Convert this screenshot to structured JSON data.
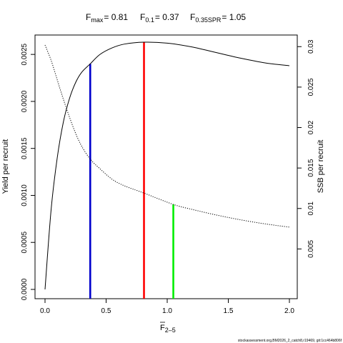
{
  "chart_data": {
    "type": "line",
    "title": {
      "fmax": {
        "symbol": "F",
        "sub": "max",
        "value": "= 0.81"
      },
      "f01": {
        "symbol": "F",
        "sub": "0.1",
        "value": "= 0.37"
      },
      "fspr": {
        "symbol": "F",
        "sub": "0.35SPR",
        "value": "= 1.05"
      }
    },
    "xlabel": {
      "symbol": "F",
      "sub": "2–5"
    },
    "ylabel_left": "Yield per recruit",
    "ylabel_right": "SSB per recruit",
    "xlim": [
      0,
      2.0
    ],
    "ylim_left": [
      0,
      0.0026
    ],
    "ylim_right": [
      0,
      0.0302
    ],
    "x_ticks": [
      0,
      0.5,
      1.0,
      1.5,
      2.0
    ],
    "x_tick_labels": [
      "0.0",
      "0.5",
      "1.0",
      "1.5",
      "2.0"
    ],
    "y_left_ticks": [
      0,
      0.0005,
      0.001,
      0.0015,
      0.002,
      0.0025
    ],
    "y_left_tick_labels": [
      "0.0000",
      "0.0005",
      "0.0010",
      "0.0015",
      "0.0020",
      "0.0025"
    ],
    "y_right_ticks": [
      0.005,
      0.01,
      0.015,
      0.02,
      0.025,
      0.03
    ],
    "y_right_tick_labels": [
      "0.005",
      "0.01",
      "0.015",
      "0.02",
      "0.025",
      "0.03"
    ],
    "series": [
      {
        "style": "solid",
        "color": "#000000",
        "axis": "left",
        "x": [
          0,
          0.05,
          0.1,
          0.15,
          0.2,
          0.25,
          0.3,
          0.37,
          0.45,
          0.55,
          0.65,
          0.81,
          1.0,
          1.2,
          1.4,
          1.6,
          1.8,
          2.0
        ],
        "y": [
          0,
          0.00085,
          0.0014,
          0.00178,
          0.00203,
          0.0022,
          0.00231,
          0.0024,
          0.0025,
          0.00257,
          0.00261,
          0.00263,
          0.00262,
          0.00258,
          0.00252,
          0.00246,
          0.00241,
          0.00238
        ]
      },
      {
        "style": "dotted",
        "color": "#000000",
        "axis": "right",
        "x": [
          0,
          0.05,
          0.1,
          0.15,
          0.2,
          0.25,
          0.3,
          0.37,
          0.45,
          0.55,
          0.65,
          0.81,
          1.05,
          1.2,
          1.4,
          1.6,
          1.8,
          2.0
        ],
        "y": [
          0.0302,
          0.0283,
          0.0259,
          0.0235,
          0.0213,
          0.0193,
          0.0177,
          0.0161,
          0.0149,
          0.0136,
          0.0128,
          0.0119,
          0.0105,
          0.0099,
          0.0092,
          0.0086,
          0.0081,
          0.0077
        ]
      }
    ],
    "reference_lines": [
      {
        "x": 0.37,
        "axis": "left",
        "y_top": 0.0024,
        "color": "#0000cc"
      },
      {
        "x": 0.81,
        "axis": "left",
        "y_top": 0.00263,
        "color": "#ff0000"
      },
      {
        "x": 1.05,
        "axis": "right",
        "y_top": 0.0105,
        "color": "#00ee00"
      }
    ],
    "grid": false,
    "footer": "stockassessment.org,BM2026_2_catch8,r19469, git:1cc464b806f"
  }
}
